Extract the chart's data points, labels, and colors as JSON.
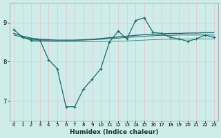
{
  "xlabel": "Humidex (Indice chaleur)",
  "bg_color": "#ceecea",
  "grid_color": "#e8c8c8",
  "line_color": "#1a6b6b",
  "xlim": [
    -0.5,
    23.5
  ],
  "ylim": [
    6.5,
    9.5
  ],
  "yticks": [
    7,
    8,
    9
  ],
  "xticks": [
    0,
    1,
    2,
    3,
    4,
    5,
    6,
    7,
    8,
    9,
    10,
    11,
    12,
    13,
    14,
    15,
    16,
    17,
    18,
    19,
    20,
    21,
    22,
    23
  ],
  "line1_x": [
    0,
    1,
    2,
    3,
    4,
    5,
    6,
    7,
    8,
    9,
    10,
    11,
    12,
    13,
    14,
    15,
    16,
    17,
    18,
    19,
    20,
    21,
    22,
    23
  ],
  "line1_y": [
    8.82,
    8.62,
    8.55,
    8.55,
    8.05,
    7.82,
    6.85,
    6.85,
    7.3,
    7.55,
    7.82,
    8.5,
    8.78,
    8.58,
    9.05,
    9.12,
    8.75,
    8.72,
    8.62,
    8.58,
    8.52,
    8.58,
    8.68,
    8.62
  ],
  "line2_x": [
    0,
    1,
    2,
    3,
    4,
    5,
    6,
    7,
    8,
    9,
    10,
    11,
    12,
    13,
    14,
    15,
    16,
    17,
    18,
    19,
    20,
    21,
    22,
    23
  ],
  "line2_y": [
    8.72,
    8.65,
    8.6,
    8.57,
    8.56,
    8.55,
    8.55,
    8.55,
    8.56,
    8.57,
    8.59,
    8.61,
    8.63,
    8.65,
    8.67,
    8.69,
    8.7,
    8.71,
    8.72,
    8.72,
    8.73,
    8.73,
    8.74,
    8.74
  ],
  "line3_x": [
    0,
    1,
    2,
    3,
    4,
    5,
    6,
    7,
    8,
    9,
    10,
    11,
    12,
    13,
    14,
    15,
    16,
    17,
    18,
    19,
    20,
    21,
    22,
    23
  ],
  "line3_y": [
    8.68,
    8.62,
    8.58,
    8.55,
    8.54,
    8.54,
    8.54,
    8.54,
    8.55,
    8.56,
    8.57,
    8.59,
    8.6,
    8.62,
    8.63,
    8.65,
    8.66,
    8.67,
    8.67,
    8.68,
    8.68,
    8.68,
    8.68,
    8.68
  ],
  "line4_x": [
    2,
    3,
    4,
    5,
    6,
    7,
    8,
    9,
    10,
    11,
    12,
    13,
    14,
    15,
    16,
    17,
    18,
    19,
    20,
    21,
    22,
    23
  ],
  "line4_y": [
    8.52,
    8.51,
    8.51,
    8.51,
    8.51,
    8.51,
    8.51,
    8.51,
    8.51,
    8.52,
    8.52,
    8.53,
    8.54,
    8.55,
    8.56,
    8.57,
    8.57,
    8.57,
    8.58,
    8.58,
    8.58,
    8.58
  ]
}
